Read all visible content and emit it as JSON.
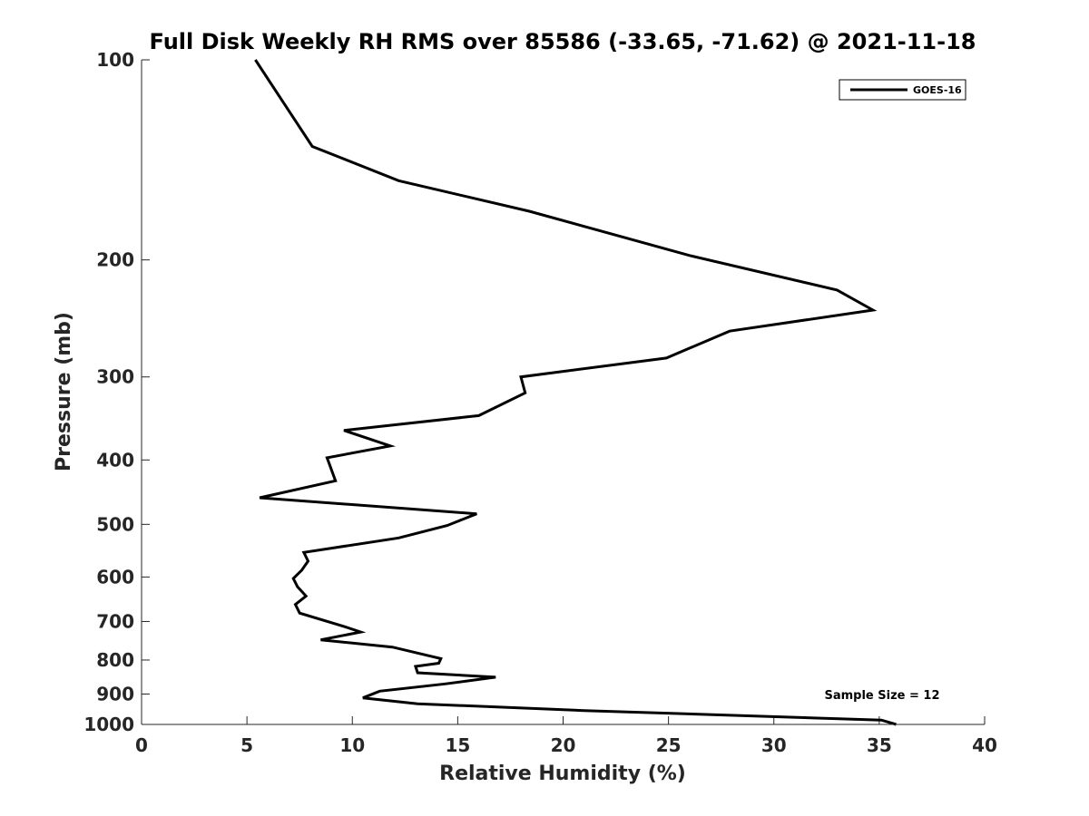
{
  "chart_data": {
    "type": "line",
    "title": "Full Disk Weekly RH RMS over 85586 (-33.65, -71.62) @ 2021-11-18",
    "xlabel": "Relative Humidity (%)",
    "ylabel": "Pressure (mb)",
    "xlim": [
      0,
      40
    ],
    "ylim": [
      100,
      1000
    ],
    "y_scale": "log",
    "y_reversed": true,
    "xticks": [
      0,
      5,
      10,
      15,
      20,
      25,
      30,
      35,
      40
    ],
    "yticks": [
      100,
      200,
      300,
      400,
      500,
      600,
      700,
      800,
      900,
      1000
    ],
    "grid": false,
    "legend_position": "top-right",
    "annotation": "Sample Size = 12",
    "series": [
      {
        "name": "GOES-16",
        "color": "#000000",
        "points": [
          [
            5.4,
            100
          ],
          [
            8.1,
            135
          ],
          [
            12.2,
            152
          ],
          [
            18.4,
            169
          ],
          [
            26.0,
            197
          ],
          [
            33.0,
            222
          ],
          [
            34.7,
            238
          ],
          [
            27.9,
            256
          ],
          [
            24.9,
            281
          ],
          [
            18.0,
            300
          ],
          [
            18.2,
            317
          ],
          [
            16.0,
            343
          ],
          [
            9.6,
            361
          ],
          [
            11.8,
            381
          ],
          [
            8.8,
            397
          ],
          [
            9.2,
            430
          ],
          [
            5.6,
            456
          ],
          [
            15.9,
            482
          ],
          [
            14.5,
            502
          ],
          [
            12.2,
            524
          ],
          [
            7.7,
            551
          ],
          [
            7.9,
            568
          ],
          [
            7.6,
            586
          ],
          [
            7.2,
            603
          ],
          [
            7.4,
            621
          ],
          [
            7.8,
            641
          ],
          [
            7.3,
            660
          ],
          [
            7.5,
            680
          ],
          [
            9.6,
            712
          ],
          [
            10.4,
            726
          ],
          [
            8.5,
            746
          ],
          [
            11.9,
            765
          ],
          [
            14.2,
            796
          ],
          [
            14.1,
            809
          ],
          [
            13.0,
            818
          ],
          [
            13.1,
            836
          ],
          [
            16.8,
            849
          ],
          [
            14.4,
            869
          ],
          [
            11.3,
            891
          ],
          [
            10.5,
            912
          ],
          [
            13.1,
            931
          ],
          [
            21.0,
            953
          ],
          [
            35.1,
            985
          ],
          [
            35.8,
            1000
          ]
        ]
      }
    ]
  }
}
